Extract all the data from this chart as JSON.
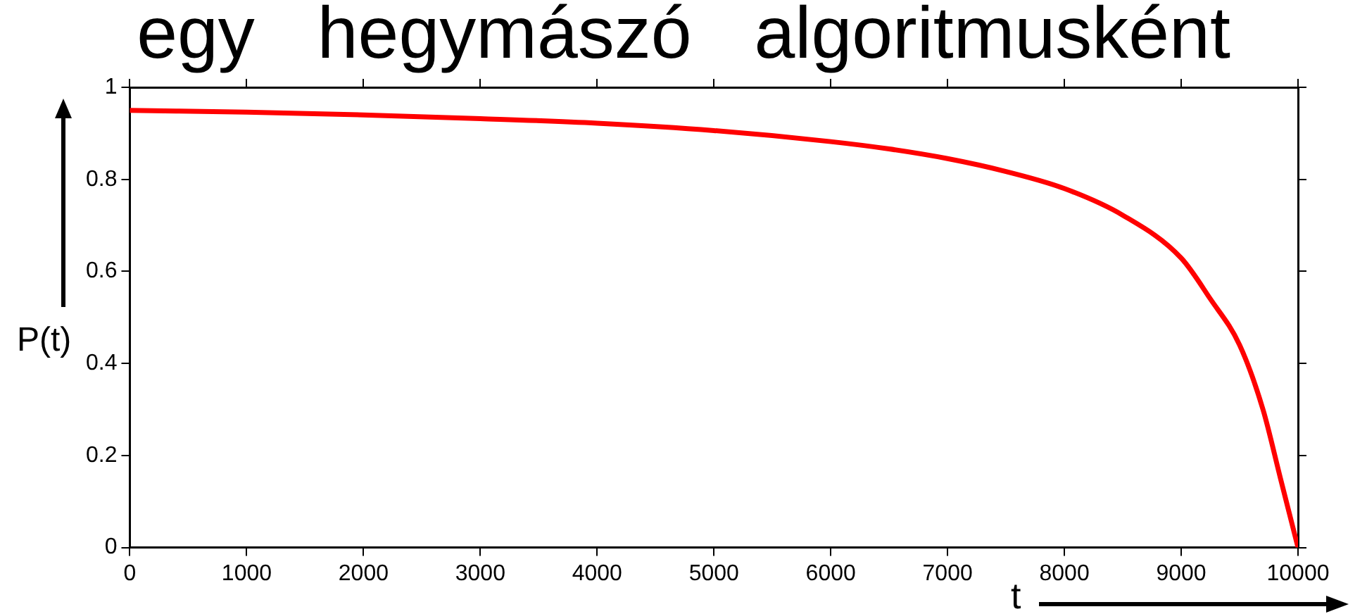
{
  "chart_data": {
    "type": "line",
    "title": "egy hegymászó algoritmusként",
    "xlabel": "t",
    "ylabel": "P(t)",
    "x": [
      0,
      1000,
      2000,
      3000,
      4000,
      5000,
      6000,
      6500,
      7000,
      7500,
      8000,
      8500,
      9000,
      9250,
      9500,
      9700,
      9850,
      10000
    ],
    "series": [
      {
        "color": "#ff0000",
        "values": [
          0.95,
          0.946,
          0.94,
          0.932,
          0.922,
          0.906,
          0.882,
          0.866,
          0.845,
          0.817,
          0.78,
          0.722,
          0.629,
          0.54,
          0.44,
          0.3,
          0.15,
          0
        ]
      }
    ],
    "xlim": [
      0,
      10000
    ],
    "xticks": [
      0,
      1000,
      2000,
      3000,
      4000,
      5000,
      6000,
      7000,
      8000,
      9000,
      10000
    ],
    "ylim": [
      0,
      1
    ],
    "yticks": [
      0,
      0.2,
      0.4,
      0.6,
      0.8,
      1
    ],
    "grid": false,
    "legend": false,
    "marker": "none",
    "line_style": "solid"
  }
}
